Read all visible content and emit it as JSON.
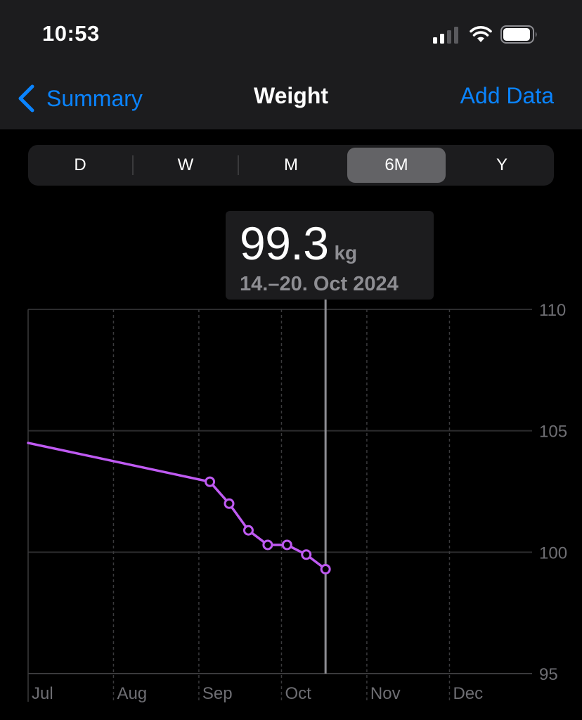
{
  "status_bar": {
    "time": "10:53",
    "signal_icon": "cellular-signal-icon",
    "wifi_icon": "wifi-icon",
    "battery_icon": "battery-icon"
  },
  "nav": {
    "back_label": "Summary",
    "back_icon": "chevron-left-icon",
    "title": "Weight",
    "action_label": "Add Data"
  },
  "segmented": {
    "options": [
      "D",
      "W",
      "M",
      "6M",
      "Y"
    ],
    "selected": "6M"
  },
  "callout": {
    "value": "99.3",
    "unit": "kg",
    "range": "14.–20. Oct 2024"
  },
  "colors": {
    "accent": "#0a84ff",
    "series": "#bf5af2",
    "header_bg": "#1c1c1e",
    "selected_segment": "#636366"
  },
  "chart_data": {
    "type": "line",
    "x_tick_labels": [
      "Jul",
      "Aug",
      "Sep",
      "Oct",
      "Nov",
      "Dec"
    ],
    "y_tick_labels": [
      "110",
      "105",
      "100",
      "95"
    ],
    "ylim": [
      95,
      110
    ],
    "xlim": [
      "2024-07-01",
      "2024-12-31"
    ],
    "grid": true,
    "selected_x": "2024-10-17",
    "series": [
      {
        "points": [
          {
            "x": "2024-07-01",
            "y": 104.5,
            "marker": false
          },
          {
            "x": "2024-09-05",
            "y": 102.9,
            "marker": true
          },
          {
            "x": "2024-09-12",
            "y": 102.0,
            "marker": true
          },
          {
            "x": "2024-09-19",
            "y": 100.9,
            "marker": true
          },
          {
            "x": "2024-09-26",
            "y": 100.3,
            "marker": true
          },
          {
            "x": "2024-10-03",
            "y": 100.3,
            "marker": true
          },
          {
            "x": "2024-10-10",
            "y": 99.9,
            "marker": true
          },
          {
            "x": "2024-10-17",
            "y": 99.3,
            "marker": true
          }
        ]
      }
    ]
  }
}
